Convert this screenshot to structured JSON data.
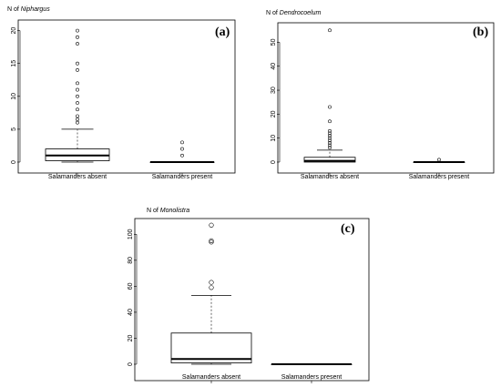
{
  "figure": {
    "panels": [
      {
        "letter": "(a)",
        "title_prefix": "N of ",
        "title_taxon": "Niphargus"
      },
      {
        "letter": "(b)",
        "title_prefix": "N of ",
        "title_taxon": "Dendrocoelum"
      },
      {
        "letter": "(c)",
        "title_prefix": "N of ",
        "title_taxon": "Monolistra"
      }
    ]
  },
  "chart_data": [
    {
      "type": "boxplot",
      "panel": "(a)",
      "ylabel": "N of Niphargus",
      "categories": [
        "Salamanders  absent",
        "Salamanders present"
      ],
      "ylim": [
        0,
        20.5
      ],
      "yticks": [
        0,
        5,
        10,
        15,
        20
      ],
      "boxes": [
        {
          "category": "Salamanders  absent",
          "whisker_low": 0,
          "q1": 0.2,
          "median": 1,
          "q3": 2,
          "whisker_high": 5,
          "outliers": [
            6,
            6.5,
            7,
            8,
            9,
            10,
            11,
            12,
            14,
            15,
            18,
            19,
            20
          ]
        },
        {
          "category": "Salamanders present",
          "whisker_low": 0,
          "q1": 0,
          "median": 0,
          "q3": 0,
          "whisker_high": 0,
          "outliers": [
            1,
            2,
            3
          ]
        }
      ]
    },
    {
      "type": "boxplot",
      "panel": "(b)",
      "ylabel": "N of Dendrocoelum",
      "categories": [
        "Salamanders  absent",
        "Salamanders present"
      ],
      "ylim": [
        0,
        57
      ],
      "yticks": [
        0,
        10,
        20,
        30,
        40,
        50
      ],
      "boxes": [
        {
          "category": "Salamanders  absent",
          "whisker_low": 0,
          "q1": 0,
          "median": 0.5,
          "q3": 2,
          "whisker_high": 5,
          "outliers": [
            6,
            7,
            8,
            9,
            10,
            11,
            12,
            13,
            17,
            23,
            55
          ]
        },
        {
          "category": "Salamanders present",
          "whisker_low": 0,
          "q1": 0,
          "median": 0,
          "q3": 0,
          "whisker_high": 0,
          "outliers": [
            1
          ]
        }
      ]
    },
    {
      "type": "boxplot",
      "panel": "(c)",
      "ylabel": "N of Monolistra",
      "categories": [
        "Salamanders  absent",
        "Salamanders present"
      ],
      "ylim": [
        0,
        110
      ],
      "yticks": [
        0,
        20,
        40,
        60,
        80,
        100
      ],
      "boxes": [
        {
          "category": "Salamanders  absent",
          "whisker_low": 0,
          "q1": 1,
          "median": 4,
          "q3": 24,
          "whisker_high": 53,
          "outliers": [
            59,
            63,
            94,
            95,
            107
          ]
        },
        {
          "category": "Salamanders present",
          "whisker_low": 0,
          "q1": 0,
          "median": 0,
          "q3": 0,
          "whisker_high": 0,
          "outliers": []
        }
      ]
    }
  ]
}
